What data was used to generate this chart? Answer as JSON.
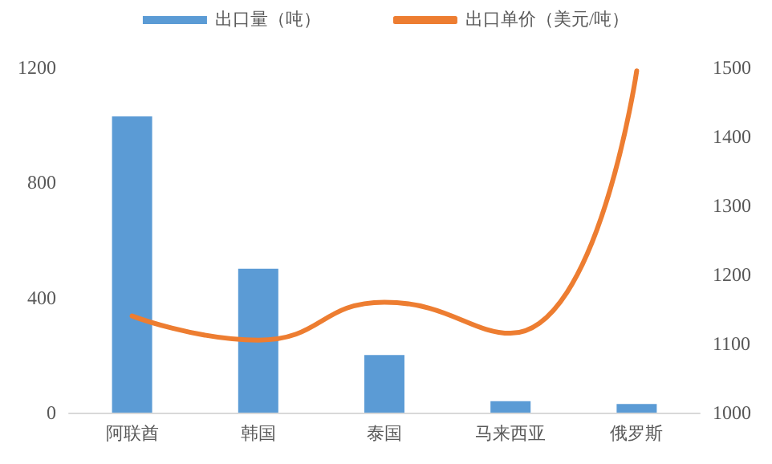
{
  "chart_data": {
    "type": "bar",
    "categories": [
      "阿联酋",
      "韩国",
      "泰国",
      "马来西亚",
      "俄罗斯"
    ],
    "series": [
      {
        "name": "出口量（吨）",
        "color": "#5b9bd5",
        "values": [
          1030,
          500,
          200,
          40,
          30
        ]
      },
      {
        "name": "出口单价（美元/吨）",
        "type": "line",
        "axis": "y2",
        "color": "#ed7d31",
        "values": [
          1140,
          1105,
          1160,
          1115,
          1495
        ],
        "marker": "none"
      }
    ],
    "ylim": [
      0,
      1200
    ],
    "yticks": [
      0,
      400,
      800,
      1200
    ],
    "y2lim": [
      1000,
      1500
    ],
    "y2ticks": [
      1000,
      1100,
      1200,
      1300,
      1400,
      1500
    ],
    "grid": false,
    "legend": "top"
  }
}
